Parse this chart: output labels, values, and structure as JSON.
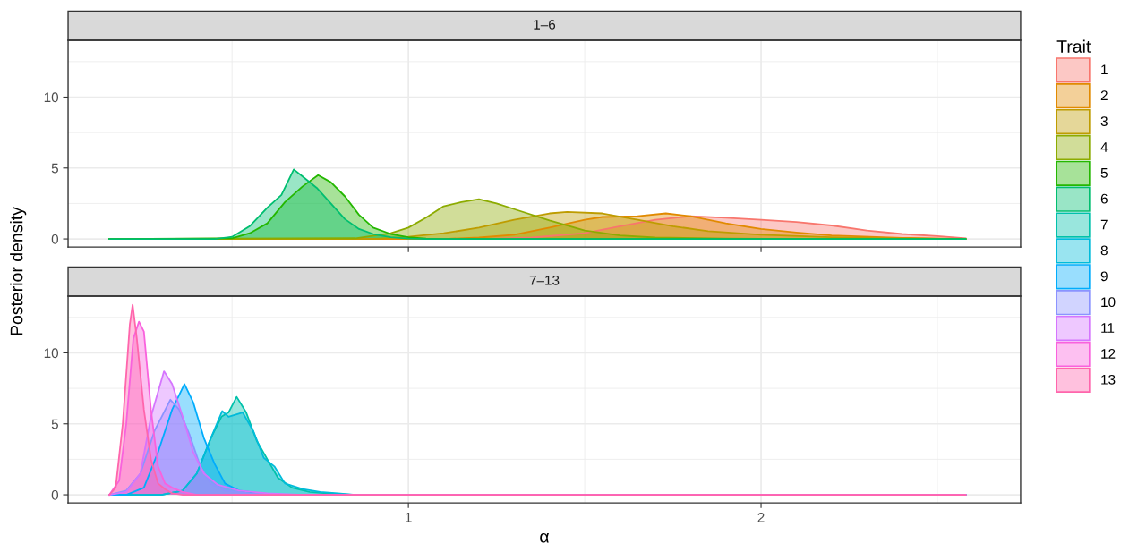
{
  "chart_data": [
    {
      "type": "area",
      "title": "1–6",
      "ylabel": "Posterior density",
      "legend_title": "Trait",
      "legend": "right",
      "grid": true,
      "tick_labels": "y",
      "xlim": [
        0.035,
        2.736
      ],
      "xticks": [
        1,
        2
      ],
      "ylim": [
        -0.57,
        14.0
      ],
      "yticks": [
        0,
        5,
        10
      ],
      "series": [
        {
          "name": "1",
          "color": "#F8766D",
          "x": [
            0.152,
            1.2,
            1.35,
            1.5,
            1.6,
            1.7,
            1.8,
            1.9,
            2.0,
            2.1,
            2.2,
            2.3,
            2.4,
            2.5,
            2.58
          ],
          "values": [
            0,
            0,
            0.1,
            0.4,
            0.9,
            1.35,
            1.6,
            1.5,
            1.35,
            1.2,
            0.95,
            0.6,
            0.35,
            0.2,
            0.05
          ]
        },
        {
          "name": "2",
          "color": "#E18A00",
          "x": [
            0.152,
            1.1,
            1.2,
            1.3,
            1.4,
            1.5,
            1.55,
            1.65,
            1.73,
            1.8,
            1.9,
            2.0,
            2.1,
            2.2,
            2.4,
            2.58
          ],
          "values": [
            0,
            0,
            0.1,
            0.3,
            0.8,
            1.35,
            1.55,
            1.6,
            1.8,
            1.6,
            1.1,
            0.7,
            0.45,
            0.25,
            0.08,
            0
          ]
        },
        {
          "name": "3",
          "color": "#BE9C00",
          "x": [
            0.152,
            0.9,
            1.0,
            1.1,
            1.2,
            1.3,
            1.4,
            1.45,
            1.55,
            1.65,
            1.75,
            1.85,
            2.0,
            2.2,
            2.4,
            2.58
          ],
          "values": [
            0,
            0,
            0.15,
            0.4,
            0.8,
            1.35,
            1.8,
            1.9,
            1.8,
            1.35,
            0.9,
            0.55,
            0.3,
            0.12,
            0.03,
            0
          ]
        },
        {
          "name": "4",
          "color": "#8CAB00",
          "x": [
            0.152,
            0.85,
            0.95,
            1.0,
            1.05,
            1.1,
            1.15,
            1.2,
            1.25,
            1.3,
            1.4,
            1.5,
            1.6,
            1.7,
            1.9,
            2.1,
            2.58
          ],
          "values": [
            0,
            0.05,
            0.4,
            0.8,
            1.5,
            2.3,
            2.6,
            2.8,
            2.5,
            2.1,
            1.3,
            0.6,
            0.25,
            0.1,
            0.02,
            0,
            0
          ]
        },
        {
          "name": "5",
          "color": "#24B700",
          "x": [
            0.152,
            0.5,
            0.55,
            0.6,
            0.65,
            0.7,
            0.744,
            0.78,
            0.82,
            0.86,
            0.9,
            0.95,
            1.0,
            1.05,
            1.1,
            2.58
          ],
          "values": [
            0,
            0.05,
            0.4,
            1.1,
            2.6,
            3.7,
            4.5,
            4.0,
            3.0,
            1.7,
            0.8,
            0.35,
            0.12,
            0.03,
            0,
            0
          ]
        },
        {
          "name": "6",
          "color": "#00BE70",
          "x": [
            0.152,
            0.45,
            0.5,
            0.55,
            0.6,
            0.64,
            0.675,
            0.7,
            0.74,
            0.78,
            0.82,
            0.86,
            0.9,
            0.95,
            1.0,
            1.05,
            2.58
          ],
          "values": [
            0,
            0,
            0.15,
            0.9,
            2.2,
            3.1,
            4.9,
            4.4,
            3.6,
            2.5,
            1.4,
            0.7,
            0.35,
            0.12,
            0.03,
            0,
            0
          ]
        }
      ]
    },
    {
      "type": "area",
      "title": "7–13",
      "xlabel": "α",
      "legend": "right",
      "grid": true,
      "xlim": [
        0.035,
        2.736
      ],
      "xticks": [
        1,
        2
      ],
      "ylim": [
        -0.57,
        14.0
      ],
      "yticks": [
        0,
        5,
        10
      ],
      "series": [
        {
          "name": "7",
          "color": "#00C1AB",
          "x": [
            0.152,
            0.3,
            0.36,
            0.4,
            0.44,
            0.47,
            0.49,
            0.513,
            0.54,
            0.57,
            0.6,
            0.63,
            0.67,
            0.72,
            0.8,
            0.85,
            2.58
          ],
          "values": [
            0,
            0,
            0.3,
            1.5,
            4,
            5.5,
            5.8,
            6.9,
            5.8,
            3.8,
            2.5,
            1.2,
            0.5,
            0.2,
            0.05,
            0,
            0
          ]
        },
        {
          "name": "8",
          "color": "#00BBDA",
          "x": [
            0.152,
            0.3,
            0.36,
            0.4,
            0.44,
            0.472,
            0.49,
            0.53,
            0.56,
            0.59,
            0.62,
            0.65,
            0.7,
            0.75,
            0.8,
            0.85,
            2.58
          ],
          "values": [
            0,
            0,
            0.3,
            1.5,
            4,
            5.9,
            5.5,
            5.8,
            4.5,
            2.6,
            2.0,
            0.8,
            0.4,
            0.2,
            0.1,
            0,
            0
          ]
        },
        {
          "name": "9",
          "color": "#00ACFC",
          "x": [
            0.152,
            0.2,
            0.25,
            0.29,
            0.33,
            0.365,
            0.39,
            0.42,
            0.45,
            0.48,
            0.52,
            0.58,
            0.65,
            2.58
          ],
          "values": [
            0,
            0,
            0.5,
            3,
            6,
            7.8,
            6.5,
            4,
            2.2,
            0.8,
            0.3,
            0.1,
            0,
            0
          ]
        },
        {
          "name": "10",
          "color": "#8B93FF",
          "x": [
            0.152,
            0.2,
            0.24,
            0.28,
            0.325,
            0.35,
            0.38,
            0.41,
            0.44,
            0.48,
            0.55,
            0.65,
            2.58
          ],
          "values": [
            0,
            0.3,
            1.5,
            4.5,
            6.7,
            6.0,
            4.2,
            2,
            0.8,
            0.3,
            0.1,
            0,
            0
          ]
        },
        {
          "name": "11",
          "color": "#D575FE",
          "x": [
            0.152,
            0.2,
            0.24,
            0.27,
            0.307,
            0.33,
            0.36,
            0.39,
            0.42,
            0.46,
            0.52,
            0.6,
            0.7,
            2.58
          ],
          "values": [
            0,
            0.2,
            1.5,
            5.5,
            8.7,
            7.8,
            5.5,
            3,
            1.5,
            0.7,
            0.3,
            0.1,
            0,
            0
          ]
        },
        {
          "name": "12",
          "color": "#F962DD",
          "x": [
            0.152,
            0.18,
            0.2,
            0.22,
            0.236,
            0.25,
            0.27,
            0.29,
            0.31,
            0.33,
            0.36,
            0.4,
            2.58
          ],
          "values": [
            0,
            1,
            5,
            11,
            12.2,
            11.5,
            6,
            2,
            0.8,
            0.5,
            0.2,
            0,
            0
          ]
        },
        {
          "name": "13",
          "color": "#FF65AC",
          "x": [
            0.152,
            0.17,
            0.19,
            0.21,
            0.218,
            0.23,
            0.25,
            0.27,
            0.29,
            0.31,
            0.33,
            0.36,
            2.58
          ],
          "values": [
            0,
            0.5,
            5,
            12,
            13.4,
            11,
            6,
            2.5,
            0.8,
            0.4,
            0.1,
            0,
            0
          ]
        }
      ]
    }
  ]
}
